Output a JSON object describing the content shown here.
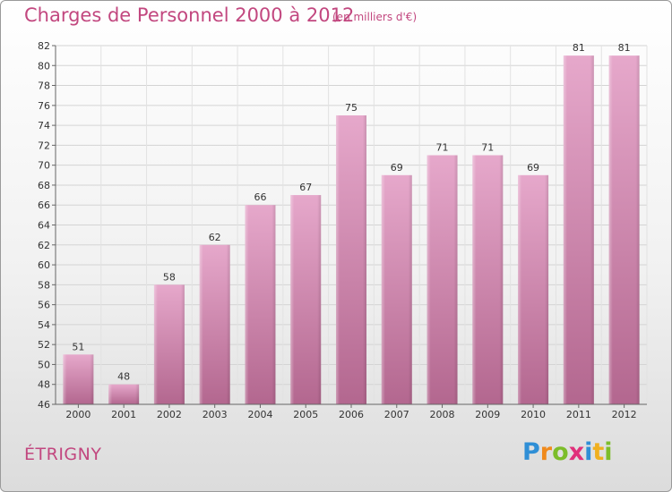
{
  "header": {
    "title": "Charges de Personnel 2000 à 2012",
    "unit": "(en milliers d'€)"
  },
  "footer": {
    "location": "ÉTRIGNY",
    "logo_letters": [
      "P",
      "r",
      "o",
      "x",
      "i",
      "t",
      "i"
    ],
    "logo_colors": [
      "#2f8fd6",
      "#f08a1c",
      "#7cbd2a",
      "#e0307a",
      "#2f8fd6",
      "#f0b020",
      "#7cbd2a"
    ]
  },
  "chart_data": {
    "type": "bar",
    "title": "Charges de Personnel 2000 à 2012",
    "subtitle": "(en milliers d'€)",
    "categories": [
      "2000",
      "2001",
      "2002",
      "2003",
      "2004",
      "2005",
      "2006",
      "2007",
      "2008",
      "2009",
      "2010",
      "2011",
      "2012"
    ],
    "values": [
      51,
      48,
      58,
      62,
      66,
      67,
      75,
      69,
      71,
      71,
      69,
      81,
      81
    ],
    "ylim": [
      46,
      82
    ],
    "yticks": [
      46,
      48,
      50,
      52,
      54,
      56,
      58,
      60,
      62,
      64,
      66,
      68,
      70,
      72,
      74,
      76,
      78,
      80,
      82
    ],
    "grid": true,
    "bar_color": "#c7699d"
  }
}
